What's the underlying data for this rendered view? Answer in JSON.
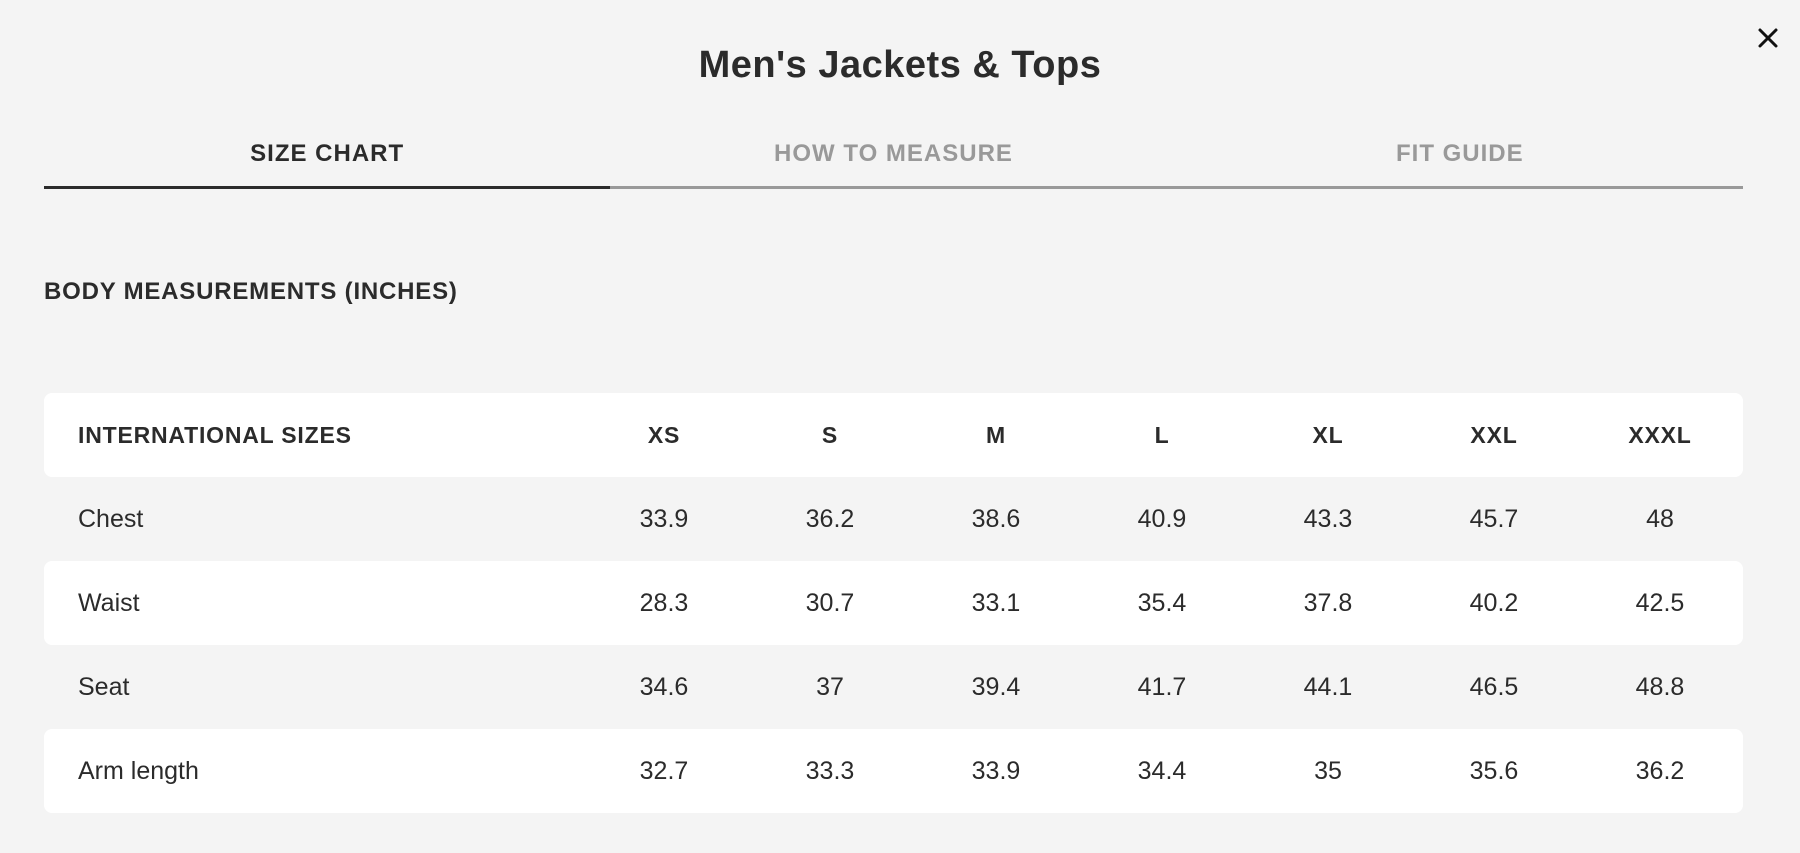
{
  "title": "Men's Jackets & Tops",
  "close_icon": "close-icon",
  "tabs": [
    {
      "label": "SIZE CHART",
      "active": true
    },
    {
      "label": "HOW TO MEASURE",
      "active": false
    },
    {
      "label": "FIT GUIDE",
      "active": false
    }
  ],
  "section_heading": "BODY MEASUREMENTS (INCHES)",
  "table": {
    "header_label": "INTERNATIONAL SIZES",
    "sizes": [
      "XS",
      "S",
      "M",
      "L",
      "XL",
      "XXL",
      "XXXL"
    ],
    "rows": [
      {
        "label": "Chest",
        "values": [
          "33.9",
          "36.2",
          "38.6",
          "40.9",
          "43.3",
          "45.7",
          "48"
        ]
      },
      {
        "label": "Waist",
        "values": [
          "28.3",
          "30.7",
          "33.1",
          "35.4",
          "37.8",
          "40.2",
          "42.5"
        ]
      },
      {
        "label": "Seat",
        "values": [
          "34.6",
          "37",
          "39.4",
          "41.7",
          "44.1",
          "46.5",
          "48.8"
        ]
      },
      {
        "label": "Arm length",
        "values": [
          "32.7",
          "33.3",
          "33.9",
          "34.4",
          "35",
          "35.6",
          "36.2"
        ]
      }
    ]
  }
}
